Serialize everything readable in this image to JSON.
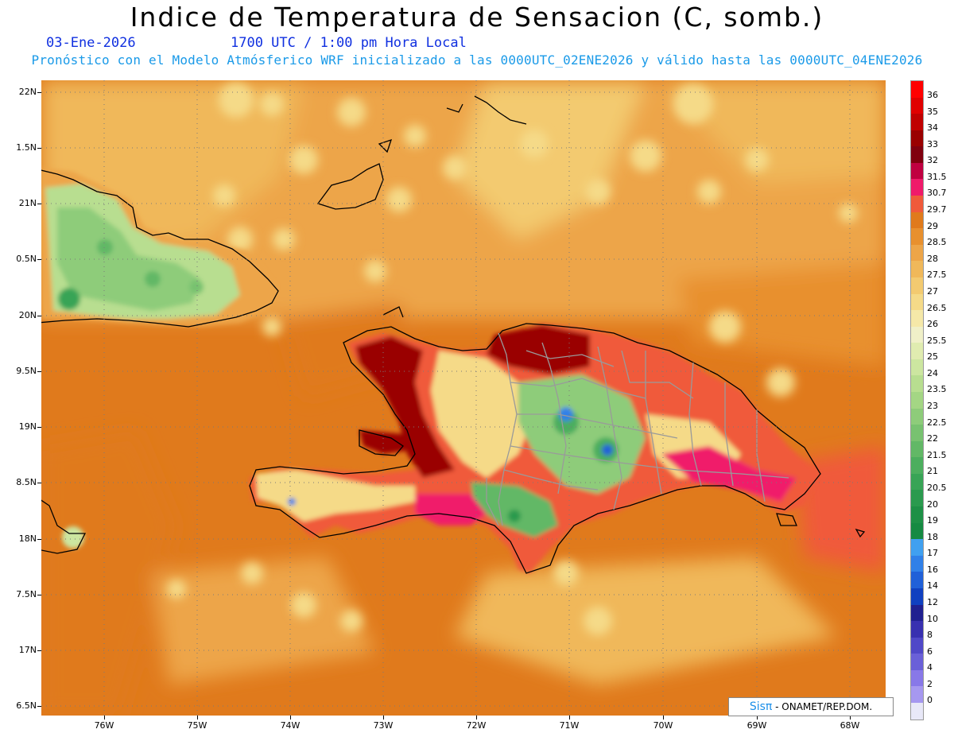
{
  "header": {
    "title": "Indice de Temperatura de Sensacion (C, somb.)",
    "date": "03-Ene-2026",
    "time": "1700 UTC / 1:00 pm Hora Local",
    "forecast_note": "Pronóstico con el Modelo Atmósferico WRF inicializado a las 0000UTC_02ENE2026 y válido hasta las  0000UTC_04ENE2026"
  },
  "map": {
    "lat_labels": [
      "22N",
      "1.5N",
      "21N",
      "0.5N",
      "20N",
      "9.5N",
      "19N",
      "8.5N",
      "18N",
      "7.5N",
      "17N",
      "6.5N"
    ],
    "lon_labels": [
      "76W",
      "75W",
      "74W",
      "73W",
      "72W",
      "71W",
      "70W",
      "69W",
      "68W"
    ],
    "ocean_color": "#e07a1c",
    "coastline_color": "#000000",
    "border_color": "#9a9a9a"
  },
  "colorbar": {
    "labels": [
      "36",
      "35",
      "34",
      "33",
      "32",
      "31.5",
      "30.7",
      "29.7",
      "29",
      "28.5",
      "28",
      "27.5",
      "27",
      "26.5",
      "26",
      "25.5",
      "25",
      "24",
      "23.5",
      "23",
      "22.5",
      "22",
      "21.5",
      "21",
      "20.5",
      "20",
      "19",
      "18",
      "17",
      "16",
      "14",
      "12",
      "10",
      "8",
      "6",
      "4",
      "2",
      "0"
    ],
    "colors": [
      "#ff0000",
      "#e00000",
      "#c00000",
      "#9a0000",
      "#80000e",
      "#c00040",
      "#f01a6a",
      "#f05a3a",
      "#e07a1c",
      "#e8902e",
      "#eda548",
      "#f0b85a",
      "#f3ca70",
      "#f5da88",
      "#f5e8a8",
      "#f0f0c8",
      "#e0ecb0",
      "#cce6a0",
      "#b8de90",
      "#a4d684",
      "#8ecc7a",
      "#78c270",
      "#62b866",
      "#4cae5e",
      "#38a456",
      "#2a9a4e",
      "#1e9046",
      "#168a42",
      "#40a0f0",
      "#3080e8",
      "#2060d8",
      "#1040c0",
      "#202090",
      "#3830b0",
      "#5048c8",
      "#6a60d8",
      "#8878e8",
      "#a698f0",
      "#e8e8f8"
    ]
  },
  "credit": {
    "logo": "Sisπ",
    "text": " - ONAMET/REP.DOM."
  }
}
